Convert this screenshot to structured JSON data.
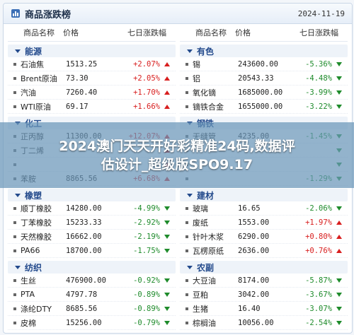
{
  "header": {
    "title": "商品涨跌榜",
    "date": "2024-11-19"
  },
  "columns": {
    "name": "商品名称",
    "price": "价格",
    "change": "七日涨跌幅"
  },
  "colors": {
    "up": "#d81e1e",
    "down": "#1e8b2b",
    "accent": "#234a8c"
  },
  "left_groups": [
    {
      "name": "能源",
      "items": [
        {
          "name": "石油焦",
          "price": "1513.25",
          "change": "+2.07%",
          "dir": "up"
        },
        {
          "name": "Brent原油",
          "price": "73.30",
          "change": "+2.05%",
          "dir": "up"
        },
        {
          "name": "汽油",
          "price": "7260.40",
          "change": "+1.70%",
          "dir": "up"
        },
        {
          "name": "WTI原油",
          "price": "69.17",
          "change": "+1.66%",
          "dir": "up"
        }
      ]
    },
    {
      "name": "化工",
      "items": [
        {
          "name": "正丙醇",
          "price": "11300.00",
          "change": "+12.07%",
          "dir": "up"
        },
        {
          "name": "丁二烯",
          "price": "",
          "change": "",
          "dir": "up"
        },
        {
          "name": "",
          "price": "",
          "change": "",
          "dir": "up"
        },
        {
          "name": "苯胺",
          "price": "8865.56",
          "change": "+6.68%",
          "dir": "up"
        }
      ]
    },
    {
      "name": "橡塑",
      "items": [
        {
          "name": "顺丁橡胶",
          "price": "14280.00",
          "change": "-4.99%",
          "dir": "down"
        },
        {
          "name": "丁苯橡胶",
          "price": "15233.33",
          "change": "-2.92%",
          "dir": "down"
        },
        {
          "name": "天然橡胶",
          "price": "16662.00",
          "change": "-2.19%",
          "dir": "down"
        },
        {
          "name": "PA66",
          "price": "18700.00",
          "change": "-1.75%",
          "dir": "down"
        }
      ]
    },
    {
      "name": "纺织",
      "items": [
        {
          "name": "生丝",
          "price": "476900.00",
          "change": "-0.92%",
          "dir": "down"
        },
        {
          "name": "PTA",
          "price": "4797.78",
          "change": "-0.89%",
          "dir": "down"
        },
        {
          "name": "涤纶DTY",
          "price": "8685.56",
          "change": "-0.89%",
          "dir": "down"
        },
        {
          "name": "皮棉",
          "price": "15256.00",
          "change": "-0.79%",
          "dir": "down"
        }
      ]
    }
  ],
  "right_groups": [
    {
      "name": "有色",
      "items": [
        {
          "name": "锡",
          "price": "243600.00",
          "change": "-5.36%",
          "dir": "down"
        },
        {
          "name": "铝",
          "price": "20543.33",
          "change": "-4.48%",
          "dir": "down"
        },
        {
          "name": "氧化镝",
          "price": "1685000.00",
          "change": "-3.99%",
          "dir": "down"
        },
        {
          "name": "镝铁合金",
          "price": "1655000.00",
          "change": "-3.22%",
          "dir": "down"
        }
      ]
    },
    {
      "name": "钢铁",
      "items": [
        {
          "name": "无缝管",
          "price": "4235.00",
          "change": "-1.45%",
          "dir": "down"
        },
        {
          "name": "",
          "price": "",
          "change": "",
          "dir": "down"
        },
        {
          "name": "",
          "price": "",
          "change": "",
          "dir": "down"
        },
        {
          "name": "",
          "price": "",
          "change": "-1.29%",
          "dir": "down"
        }
      ]
    },
    {
      "name": "建材",
      "items": [
        {
          "name": "玻璃",
          "price": "16.65",
          "change": "-2.06%",
          "dir": "down"
        },
        {
          "name": "废纸",
          "price": "1553.00",
          "change": "+1.97%",
          "dir": "up"
        },
        {
          "name": "针叶木浆",
          "price": "6290.00",
          "change": "+0.80%",
          "dir": "up"
        },
        {
          "name": "瓦楞原纸",
          "price": "2636.00",
          "change": "+0.76%",
          "dir": "up"
        }
      ]
    },
    {
      "name": "农副",
      "items": [
        {
          "name": "大豆油",
          "price": "8174.00",
          "change": "-5.87%",
          "dir": "down"
        },
        {
          "name": "豆粕",
          "price": "3042.00",
          "change": "-3.67%",
          "dir": "down"
        },
        {
          "name": "生猪",
          "price": "16.40",
          "change": "-3.07%",
          "dir": "down"
        },
        {
          "name": "棕榈油",
          "price": "10056.00",
          "change": "-2.54%",
          "dir": "down"
        }
      ]
    }
  ],
  "overlay": {
    "line1": "2024澳门天天开好彩精准24码,数据评",
    "line2": "估设计_超级版SPO9.17"
  }
}
